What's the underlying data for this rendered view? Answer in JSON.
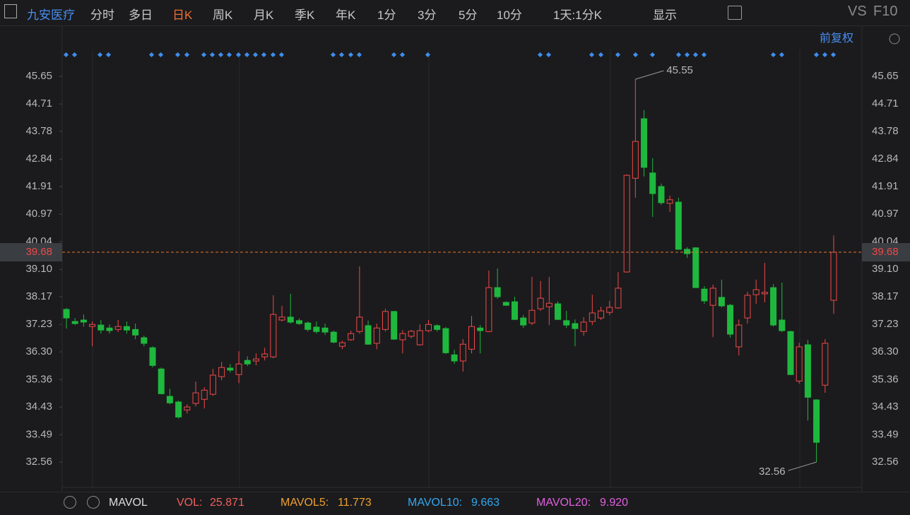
{
  "toolbar": {
    "stock": "九安医疗",
    "tabs": [
      "分时",
      "多日",
      "日K",
      "周K",
      "月K",
      "季K",
      "年K",
      "1分",
      "3分",
      "5分",
      "10分"
    ],
    "period": "1天:1分K",
    "display": "显示",
    "vs": "VS",
    "f10": "F10",
    "adjust": "前复权"
  },
  "chart_data": {
    "type": "candlestick",
    "open": [
      37.74,
      37.33,
      37.38,
      37.16,
      37.21,
      37.11,
      37.06,
      37.16,
      37.06,
      36.78,
      36.44,
      35.72,
      34.79,
      34.6,
      34.33,
      34.55,
      34.69,
      34.86,
      35.46,
      35.75,
      35.53,
      36.01,
      35.99,
      36.13,
      36.13,
      37.38,
      37.48,
      37.36,
      37.28,
      37.14,
      37.11,
      36.97,
      36.49,
      36.71,
      36.99,
      37.19,
      36.59,
      37.06,
      37.67,
      36.71,
      36.83,
      36.54,
      37.02,
      37.19,
      37.09,
      36.2,
      35.99,
      36.39,
      37.11,
      36.99,
      38.48,
      37.98,
      38.0,
      37.45,
      37.28,
      37.76,
      37.83,
      37.93,
      37.36,
      37.26,
      36.99,
      37.33,
      37.45,
      37.64,
      37.79,
      39.01,
      42.19,
      44.21,
      42.37,
      41.91,
      41.34,
      41.38,
      39.78,
      39.83,
      38.43,
      37.88,
      38.15,
      37.88,
      36.47,
      37.45,
      38.24,
      38.27,
      38.48,
      37.38,
      36.99,
      35.31,
      36.54,
      34.67,
      35.17,
      38.05
    ],
    "high": [
      37.79,
      37.45,
      37.57,
      37.33,
      37.38,
      37.23,
      37.38,
      37.33,
      37.26,
      36.85,
      36.49,
      35.77,
      35.05,
      34.64,
      34.52,
      35.29,
      35.1,
      35.72,
      35.96,
      35.89,
      36.32,
      36.15,
      36.25,
      36.44,
      38.22,
      37.86,
      38.27,
      37.43,
      37.33,
      37.33,
      37.26,
      37.02,
      36.68,
      37.02,
      39.2,
      37.36,
      37.26,
      37.76,
      37.69,
      37.04,
      37.04,
      37.23,
      37.38,
      37.23,
      37.14,
      36.37,
      36.73,
      37.52,
      37.21,
      39.06,
      39.13,
      38.01,
      38.17,
      37.55,
      38.84,
      38.7,
      38.84,
      38.01,
      37.69,
      37.4,
      37.48,
      38.24,
      37.83,
      38.03,
      39.01,
      42.32,
      45.55,
      44.5,
      42.87,
      42.01,
      41.6,
      41.53,
      39.85,
      39.85,
      38.53,
      38.58,
      38.75,
      37.93,
      37.4,
      38.34,
      38.75,
      39.32,
      38.6,
      38.65,
      37.02,
      36.61,
      36.71,
      34.69,
      36.73,
      40.25
    ],
    "low": [
      37.09,
      37.21,
      37.16,
      36.49,
      36.92,
      36.92,
      36.97,
      36.92,
      36.73,
      36.49,
      35.77,
      34.86,
      34.52,
      34.04,
      34.21,
      34.45,
      34.38,
      34.81,
      35.34,
      35.6,
      35.24,
      35.82,
      35.84,
      36.01,
      36.08,
      37.33,
      37.26,
      37.21,
      36.99,
      36.92,
      36.87,
      36.59,
      36.39,
      36.68,
      36.92,
      36.54,
      36.39,
      36.99,
      36.71,
      36.25,
      36.76,
      36.51,
      36.97,
      36.99,
      36.23,
      35.89,
      35.63,
      36.25,
      36.25,
      36.97,
      38.1,
      37.86,
      37.38,
      37.11,
      37.21,
      37.69,
      37.21,
      37.38,
      37.11,
      36.49,
      36.85,
      37.21,
      37.38,
      37.55,
      37.76,
      38.99,
      41.53,
      42.25,
      40.88,
      41.29,
      41.05,
      39.76,
      39.49,
      38.48,
      37.93,
      36.8,
      37.81,
      36.78,
      36.18,
      37.26,
      37.93,
      37.98,
      37.16,
      36.97,
      35.51,
      35.22,
      33.97,
      32.56,
      34.91,
      37.59
    ],
    "close": [
      37.45,
      37.26,
      37.31,
      37.23,
      37.04,
      37.02,
      37.16,
      37.04,
      36.87,
      36.59,
      35.84,
      34.88,
      34.57,
      34.09,
      34.43,
      34.91,
      35.0,
      35.51,
      35.77,
      35.68,
      35.89,
      35.89,
      36.06,
      36.23,
      37.57,
      37.48,
      37.31,
      37.26,
      37.06,
      36.99,
      36.97,
      36.63,
      36.61,
      36.92,
      37.48,
      36.56,
      37.11,
      37.67,
      36.73,
      36.92,
      37.0,
      37.02,
      37.23,
      37.06,
      36.27,
      35.99,
      36.56,
      37.16,
      37.02,
      38.48,
      38.17,
      37.88,
      37.4,
      37.21,
      37.71,
      38.12,
      37.95,
      37.4,
      37.21,
      37.09,
      37.31,
      37.62,
      37.69,
      37.81,
      38.46,
      42.29,
      43.44,
      42.56,
      41.67,
      41.36,
      41.46,
      39.78,
      39.63,
      38.48,
      38.03,
      38.46,
      37.86,
      36.9,
      37.21,
      38.22,
      38.41,
      38.32,
      37.21,
      37.02,
      35.53,
      36.47,
      34.76,
      33.23,
      36.59,
      39.68
    ],
    "up_color": "#f04848",
    "down_color": "#1fb83e",
    "price_line_color": "#e8742c",
    "ylim": [
      31.7,
      46.56
    ],
    "yticks": [
      45.65,
      44.71,
      43.78,
      42.84,
      41.91,
      40.97,
      40.04,
      {
        "value": 39.1,
        "label": "39.10"
      },
      38.17,
      37.23,
      {
        "value": 36.3,
        "label": "36.30"
      },
      35.36,
      34.43,
      33.49,
      32.56
    ],
    "grid": false
  },
  "indicators": {
    "name": "MAVOL",
    "items": [
      {
        "label": "VOL:",
        "value": "25.871",
        "color": "#f06060"
      },
      {
        "label": "MAVOL5:",
        "value": "11.773",
        "color": "#f0a030"
      },
      {
        "label": "MAVOL10:",
        "value": "9.663",
        "color": "#30a8f0"
      },
      {
        "label": "MAVOL20:",
        "value": "9.920",
        "color": "#e060e0"
      }
    ]
  }
}
